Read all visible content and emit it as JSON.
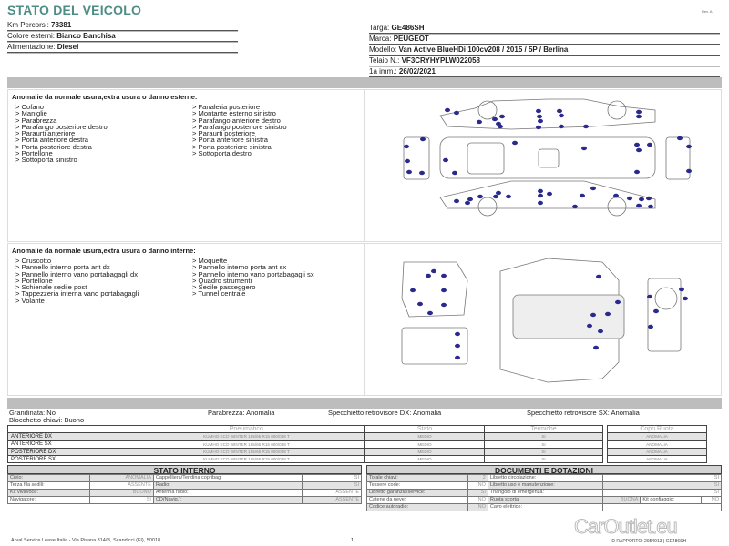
{
  "header": {
    "title": "STATO DEL VEICOLO",
    "rev": "Rev. A"
  },
  "vehicle": {
    "km_label": "Km Percorsi:",
    "km": "78381",
    "colore_label": "Colore esterni:",
    "colore": "Bianco Banchisa",
    "alim_label": "Alimentazione:",
    "alim": "Diesel",
    "targa_label": "Targa:",
    "targa": "GE486SH",
    "marca_label": "Marca:",
    "marca": "PEUGEOT",
    "modello_label": "Modello:",
    "modello": "Van Active BlueHDi 100cv208 / 2015 / 5P / Berlina",
    "telaio_label": "Telaio N.:",
    "telaio": "VF3CRYHYPLW022058",
    "imm_label": "1a imm.:",
    "imm": "26/02/2021"
  },
  "esterni": {
    "title": "Anomalie da normale usura,extra usura o danno esterne:",
    "col1": [
      "> Cofano",
      "> Maniglie",
      "> Parabrezza",
      "> Parafango posteriore destro",
      "> Paraurti anteriore",
      "> Porta anteriore destra",
      "> Porta posteriore destra",
      "> Portellone",
      "> Sottoporta sinistro"
    ],
    "col2": [
      "> Fanaleria posteriore",
      "> Montante esterno sinistro",
      "> Parafango anteriore destro",
      "> Parafango posteriore sinistro",
      "> Paraurti posteriore",
      "> Porta anteriore sinistra",
      "> Porta posteriore sinistra",
      "> Sottoporta destro"
    ]
  },
  "interni": {
    "title": "Anomalie da normale usura,extra usura o danno interne:",
    "col1": [
      "> Cruscotto",
      "> Pannello interno porta ant dx",
      "> Pannello interno vano portabagagli dx",
      "> Portellone",
      "> Schienale sedile post",
      "> Tappezzeria interna vano portabagagli",
      "> Volante"
    ],
    "col2": [
      "> Moquette",
      "> Pannello interno porta ant sx",
      "> Pannello interno vano portabagagli sx",
      "> Quadro strumenti",
      "> Sedile passeggero",
      "> Tunnel centrale"
    ]
  },
  "status": {
    "grandinata": "Grandinata: No",
    "blocchetto": "Blocchetto chiavi: Buono",
    "parabrezza": "Parabrezza: Anomalia",
    "spec_dx": "Specchietto retrovisore DX: Anomalia",
    "spec_sx": "Specchietto retrovisore SX: Anomalia"
  },
  "tires": {
    "headers": [
      "Pneumatico",
      "Stato",
      "Termiche"
    ],
    "copri_header": "Copri Ruota",
    "rows": [
      {
        "pos": "ANTERIORE DX",
        "tyre": "KUMHO ECO WINTER 185/65 R15 000/088 T",
        "stato": "MEDIO",
        "termiche": "SI",
        "copri": "ANOMALIA"
      },
      {
        "pos": "ANTERIORE SX",
        "tyre": "KUMHO ECO WINTER 185/65 R15 000/088 T",
        "stato": "MEDIO",
        "termiche": "SI",
        "copri": "ANOMALIA"
      },
      {
        "pos": "POSTERIORE DX",
        "tyre": "KUMHO ECO WINTER 185/65 R15 000/088 T",
        "stato": "MEDIO",
        "termiche": "SI",
        "copri": "ANOMALIA"
      },
      {
        "pos": "POSTERIORE SX",
        "tyre": "KUMHO ECO WINTER 185/65 R15 000/088 T",
        "stato": "MEDIO",
        "termiche": "SI",
        "copri": "ANOMALIA"
      }
    ]
  },
  "interno": {
    "title": "STATO INTERNO",
    "rows": [
      [
        [
          "Cielo:",
          "ANOMALIA"
        ],
        [
          "Cappelliera/Tendina copribag:",
          "SI"
        ]
      ],
      [
        [
          "Terza fila sedili:",
          "ASSENTE"
        ],
        [
          "Radio:",
          "SI"
        ]
      ],
      [
        [
          "Kit vivavoce:",
          "BUONO"
        ],
        [
          "Antenna radio:",
          "ASSENTE"
        ]
      ],
      [
        [
          "Navigatore:",
          "SI"
        ],
        [
          "CD(Navig.):",
          "ASSENTE"
        ]
      ]
    ]
  },
  "documenti": {
    "title": "DOCUMENTI E DOTAZIONI",
    "rows": [
      [
        [
          "Totale chiavi:",
          "2"
        ],
        [
          "Libretto circolazione:",
          "SI"
        ]
      ],
      [
        [
          "Tessere code:",
          "NO"
        ],
        [
          "Libretto uso e manutenzione:",
          "SI"
        ]
      ],
      [
        [
          "Libretto garanzia/service:",
          "SI"
        ],
        [
          "Triangolo di emergenza:",
          "SI"
        ]
      ],
      [
        [
          "Catene da neve:",
          "NO"
        ],
        [
          "Ruota scorta:",
          "BUONA"
        ],
        [
          "Kit gonfiaggio:",
          "NO"
        ]
      ],
      [
        [
          "Codice autoradio:",
          "NO"
        ],
        [
          "Cavo elettrico:",
          ""
        ]
      ]
    ]
  },
  "footer": {
    "address": "Arval Service Lease Italia - Via Pisana 314/B, Scandicci (FI), 50018",
    "page": "1",
    "id": "ID RAPPORTO: 2954913 | GE486SH"
  },
  "watermark": "CarOutlet.eu",
  "colors": {
    "title": "#4e8d84",
    "damage_dot": "#2a2a8c",
    "bar": "#bdbdbd"
  }
}
